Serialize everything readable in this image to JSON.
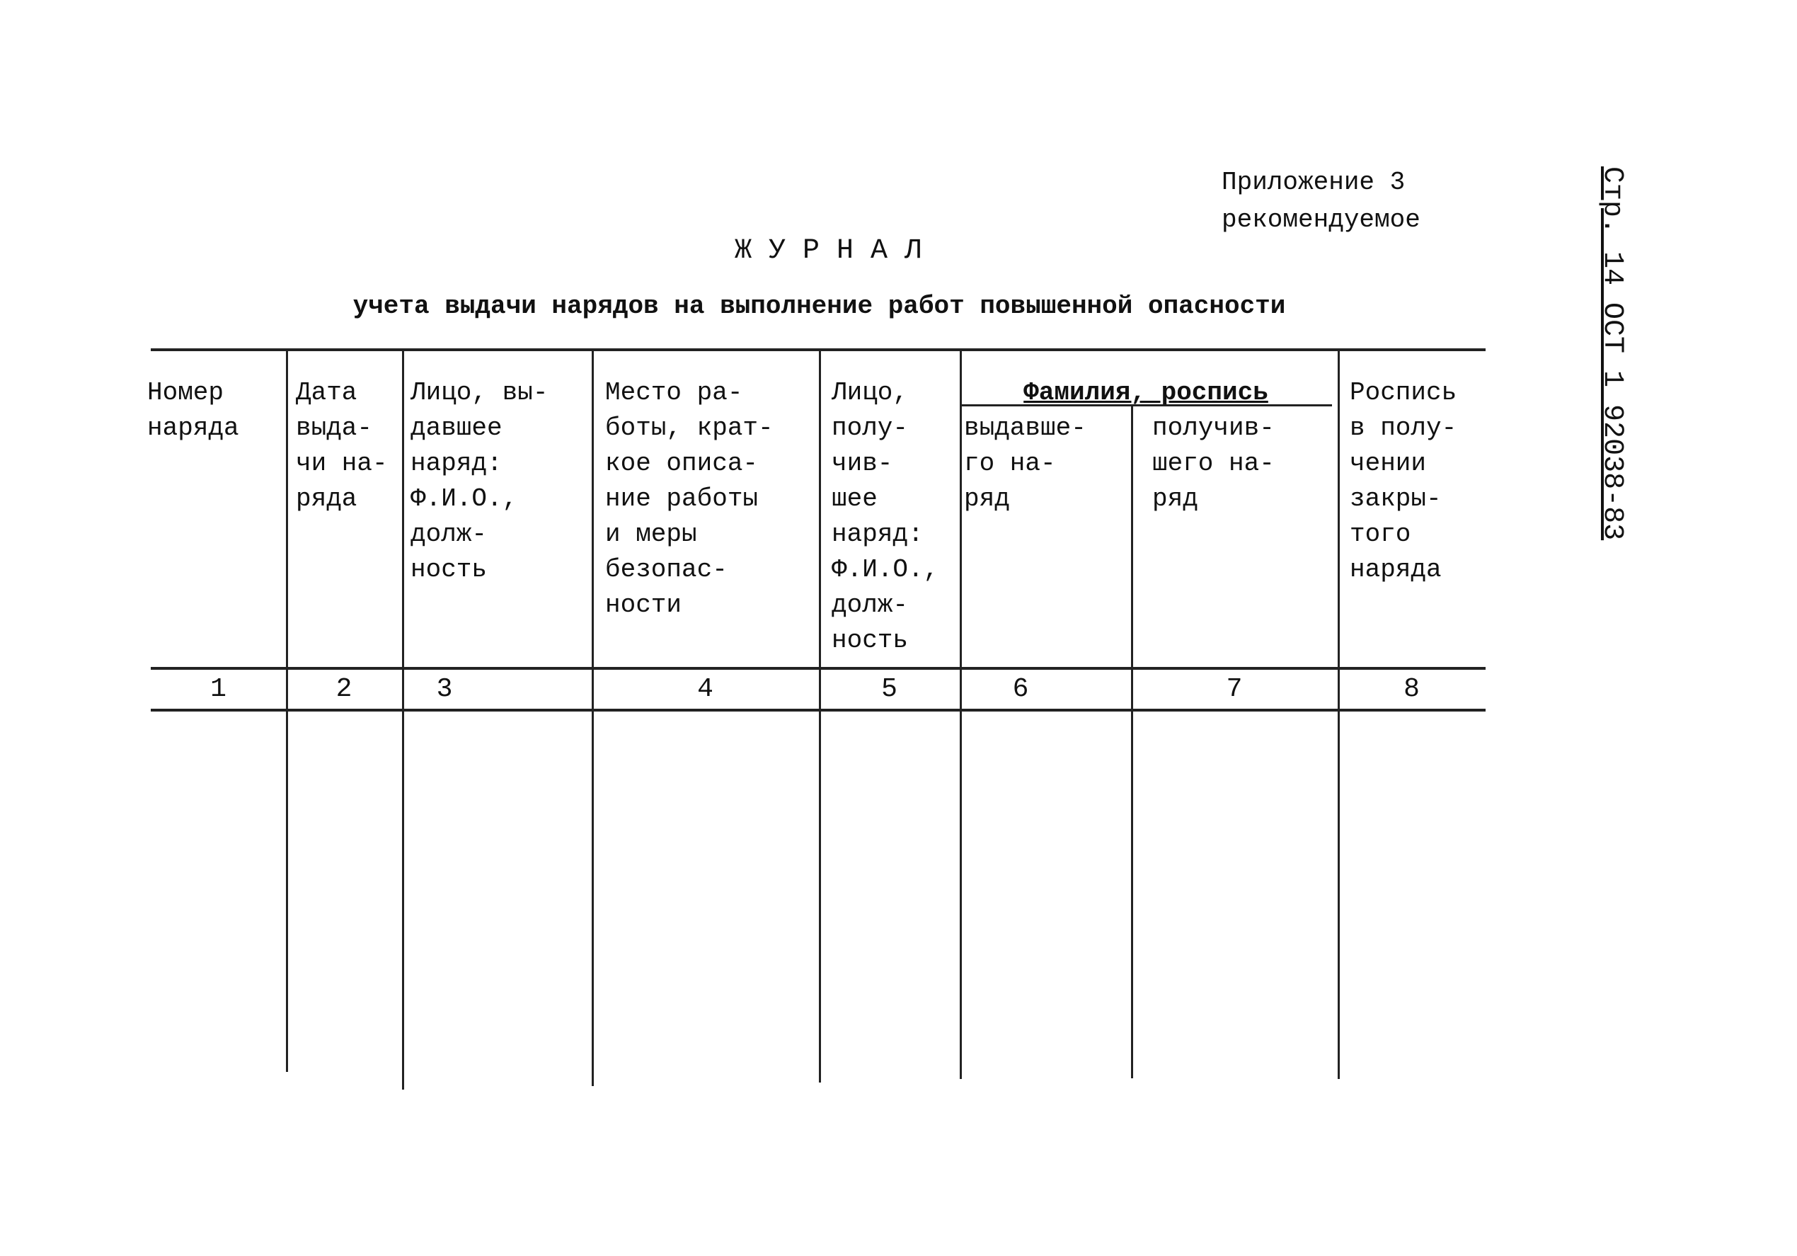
{
  "appendix": {
    "line1": "Приложение 3",
    "line2": "рекомендуемое"
  },
  "side_label": "Стр. 14 ОСТ 1 92038-83",
  "title": "Ж У Р Н А Л",
  "subtitle": "учета выдачи нарядов на выполнение работ повышенной опасности",
  "table": {
    "group_header": "Фамилия, роспись",
    "columns": [
      {
        "header": "Номер\nнаряда",
        "number": "1"
      },
      {
        "header": "Дата\nвыда-\nчи на-\nряда",
        "number": "2"
      },
      {
        "header": "Лицо, вы-\nдавшее\nнаряд:\nФ.И.О.,\nдолж-\nность",
        "number": "3"
      },
      {
        "header": "Место ра-\nботы, крат-\nкое описа-\nние работы\nи меры\nбезопас-\nности",
        "number": "4"
      },
      {
        "header": "Лицо,\nполу-\nчив-\nшее\nнаряд:\nФ.И.О.,\nдолж-\nность",
        "number": "5"
      },
      {
        "header": "выдавше-\nго на-\nряд",
        "number": "6"
      },
      {
        "header": "получив-\nшего на-\nряд",
        "number": "7"
      },
      {
        "header": "Роспись\nв полу-\nчении\nзакры-\nтого\nнаряда",
        "number": "8"
      }
    ]
  }
}
